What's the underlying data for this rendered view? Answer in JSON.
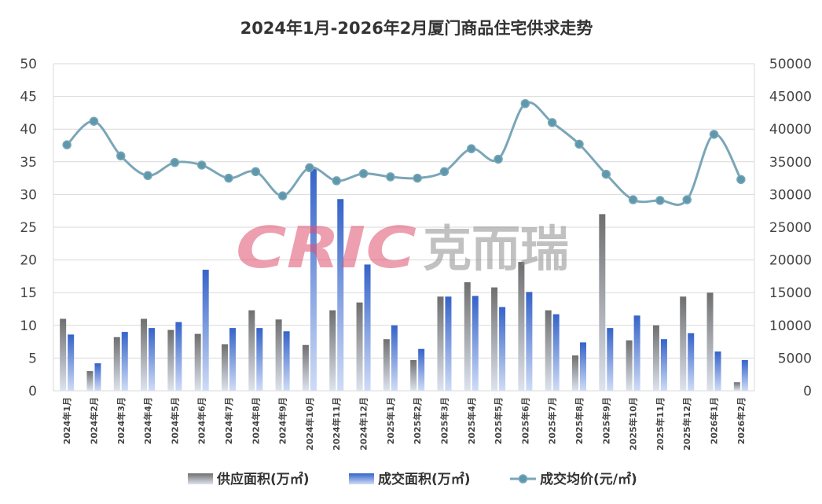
{
  "chart_data": {
    "type": "bar+line",
    "title": "2024年1月-2026年2月厦门商品住宅供求走势",
    "categories": [
      "2024年1月",
      "2024年2月",
      "2024年3月",
      "2024年4月",
      "2024年5月",
      "2024年6月",
      "2024年7月",
      "2024年8月",
      "2024年9月",
      "2024年10月",
      "2024年11月",
      "2024年12月",
      "2025年1月",
      "2025年2月",
      "2025年3月",
      "2025年4月",
      "2025年5月",
      "2025年6月",
      "2025年7月",
      "2025年8月",
      "2025年9月",
      "2025年10月",
      "2025年11月",
      "2025年12月",
      "2026年1月",
      "2026年2月"
    ],
    "series": [
      {
        "name": "供应面积(万㎡)",
        "type": "bar",
        "axis": "left",
        "values": [
          11.0,
          3.0,
          8.2,
          11.0,
          9.3,
          8.7,
          7.1,
          12.3,
          10.9,
          7.0,
          12.3,
          13.5,
          7.9,
          4.7,
          14.4,
          16.6,
          15.8,
          19.7,
          12.3,
          5.4,
          27.0,
          7.7,
          10.0,
          14.4,
          15.0,
          1.3
        ]
      },
      {
        "name": "成交面积(万㎡)",
        "type": "bar",
        "axis": "left",
        "values": [
          8.6,
          4.2,
          9.0,
          9.6,
          10.5,
          18.5,
          9.6,
          9.6,
          9.1,
          33.9,
          29.3,
          19.3,
          10.0,
          6.4,
          14.4,
          14.5,
          12.8,
          15.1,
          11.7,
          7.4,
          9.6,
          11.5,
          7.9,
          8.8,
          6.0,
          4.7
        ]
      },
      {
        "name": "成交均价(元/㎡)",
        "type": "line",
        "axis": "right",
        "values": [
          37600,
          41200,
          35900,
          32900,
          34900,
          34500,
          32500,
          33500,
          29800,
          34100,
          32100,
          33200,
          32700,
          32500,
          33500,
          37000,
          35400,
          43900,
          41000,
          37700,
          33100,
          29200,
          29100,
          29200,
          39200,
          32300
        ]
      }
    ],
    "y_left": {
      "min": 0,
      "max": 50,
      "ticks": [
        0,
        5,
        10,
        15,
        20,
        25,
        30,
        35,
        40,
        45,
        50
      ]
    },
    "y_right": {
      "min": 0,
      "max": 50000,
      "ticks": [
        0,
        5000,
        10000,
        15000,
        20000,
        25000,
        30000,
        35000,
        40000,
        45000,
        50000
      ]
    },
    "grid": true,
    "legend_position": "bottom",
    "colors": {
      "supply": "#7f7f7f",
      "deal": "#4472c4",
      "price": "#7aa6b8",
      "grid": "#d9d9d9"
    }
  },
  "watermark": {
    "latin": "CRIC",
    "cjk": "克而瑞"
  }
}
